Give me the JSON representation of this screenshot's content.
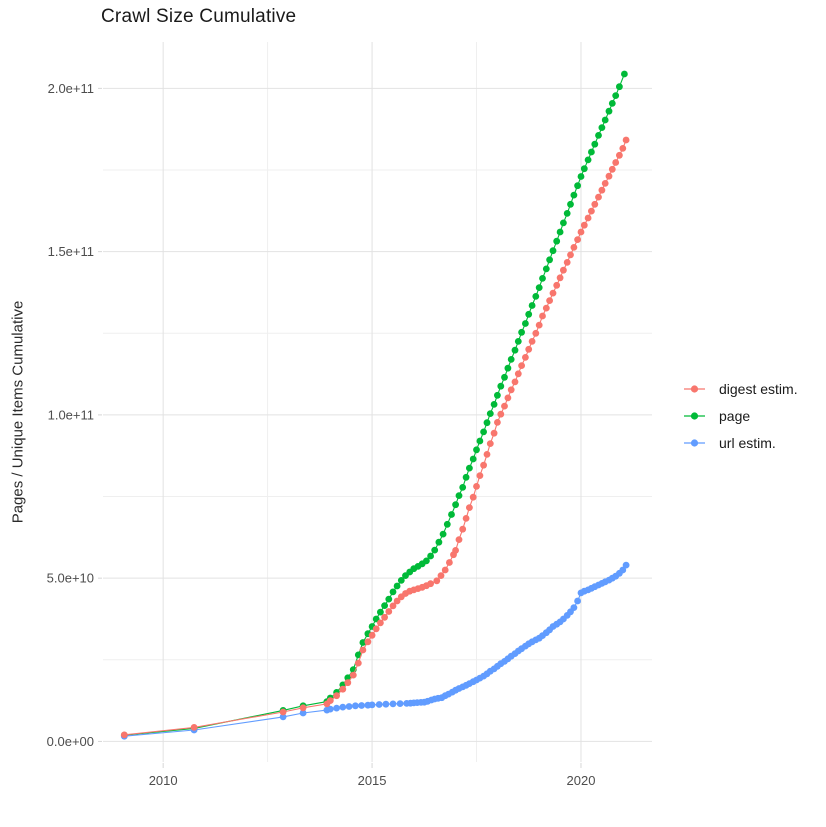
{
  "title": "Crawl Size Cumulative",
  "axes": {
    "y_label": "Pages / Unique Items Cumulative",
    "x_ticks": [
      {
        "value": 2010,
        "label": "2010"
      },
      {
        "value": 2015,
        "label": "2015"
      },
      {
        "value": 2020,
        "label": "2020"
      }
    ],
    "y_ticks": [
      {
        "value": 0,
        "label": "0.0e+00"
      },
      {
        "value": 50,
        "label": "5.0e+10"
      },
      {
        "value": 100,
        "label": "1.0e+11"
      },
      {
        "value": 150,
        "label": "1.5e+11"
      },
      {
        "value": 200,
        "label": "2.0e+11"
      }
    ],
    "x_minor": [
      2012.5,
      2017.5
    ],
    "y_minor": [
      25,
      75,
      125,
      175
    ],
    "x_domain": [
      2008.56,
      2021.7
    ],
    "y_domain": [
      -6.3,
      214.2
    ]
  },
  "legend": {
    "position": "right",
    "items": [
      {
        "id": "digest",
        "label": "digest estim.",
        "color": "#F8766D"
      },
      {
        "id": "page",
        "label": "page",
        "color": "#00BA38"
      },
      {
        "id": "url",
        "label": "url estim.",
        "color": "#619CFF"
      }
    ]
  },
  "chart_data": {
    "type": "line",
    "title": "Crawl Size Cumulative",
    "xlabel": "",
    "ylabel": "Pages / Unique Items Cumulative",
    "x_unit": "year",
    "value_unit": "pages, in billions (1e9)",
    "grid": true,
    "marker": "point",
    "series": [
      {
        "name": "page",
        "color": "#00BA38",
        "points": [
          [
            2009.07,
            1.9
          ],
          [
            2010.74,
            4.0
          ],
          [
            2012.87,
            9.5
          ],
          [
            2013.35,
            10.9
          ],
          [
            2013.92,
            12.2
          ],
          [
            2014.0,
            13.3
          ],
          [
            2014.15,
            15.0
          ],
          [
            2014.3,
            17.3
          ],
          [
            2014.42,
            19.5
          ],
          [
            2014.55,
            22.0
          ],
          [
            2014.67,
            26.5
          ],
          [
            2014.78,
            30.3
          ],
          [
            2014.9,
            33.0
          ],
          [
            2015.0,
            35.2
          ],
          [
            2015.1,
            37.5
          ],
          [
            2015.2,
            39.6
          ],
          [
            2015.3,
            41.6
          ],
          [
            2015.4,
            43.6
          ],
          [
            2015.5,
            45.8
          ],
          [
            2015.6,
            47.6
          ],
          [
            2015.7,
            49.3
          ],
          [
            2015.8,
            50.8
          ],
          [
            2015.9,
            51.9
          ],
          [
            2016.0,
            52.9
          ],
          [
            2016.1,
            53.6
          ],
          [
            2016.2,
            54.4
          ],
          [
            2016.3,
            55.3
          ],
          [
            2016.4,
            56.8
          ],
          [
            2016.5,
            58.6
          ],
          [
            2016.6,
            61.0
          ],
          [
            2016.7,
            63.5
          ],
          [
            2016.8,
            66.5
          ],
          [
            2016.9,
            69.5
          ],
          [
            2017.0,
            72.5
          ],
          [
            2017.08,
            75.3
          ],
          [
            2017.17,
            77.8
          ],
          [
            2017.25,
            80.9
          ],
          [
            2017.33,
            83.7
          ],
          [
            2017.42,
            86.5
          ],
          [
            2017.5,
            89.3
          ],
          [
            2017.58,
            92.0
          ],
          [
            2017.67,
            94.8
          ],
          [
            2017.75,
            97.6
          ],
          [
            2017.83,
            100.4
          ],
          [
            2017.92,
            103.2
          ],
          [
            2018.0,
            106.0
          ],
          [
            2018.08,
            108.8
          ],
          [
            2018.17,
            111.5
          ],
          [
            2018.25,
            114.3
          ],
          [
            2018.33,
            117.0
          ],
          [
            2018.42,
            119.8
          ],
          [
            2018.5,
            122.5
          ],
          [
            2018.58,
            125.3
          ],
          [
            2018.67,
            128.0
          ],
          [
            2018.75,
            130.8
          ],
          [
            2018.83,
            133.5
          ],
          [
            2018.92,
            136.3
          ],
          [
            2019.0,
            139.0
          ],
          [
            2019.08,
            141.8
          ],
          [
            2019.17,
            144.7
          ],
          [
            2019.25,
            147.5
          ],
          [
            2019.33,
            150.3
          ],
          [
            2019.42,
            153.2
          ],
          [
            2019.5,
            156.0
          ],
          [
            2019.58,
            158.8
          ],
          [
            2019.67,
            161.7
          ],
          [
            2019.75,
            164.5
          ],
          [
            2019.83,
            167.3
          ],
          [
            2019.92,
            170.2
          ],
          [
            2020.0,
            173.0
          ],
          [
            2020.08,
            175.4
          ],
          [
            2020.17,
            178.1
          ],
          [
            2020.25,
            180.5
          ],
          [
            2020.33,
            182.9
          ],
          [
            2020.42,
            185.6
          ],
          [
            2020.5,
            188.0
          ],
          [
            2020.58,
            190.3
          ],
          [
            2020.67,
            193.0
          ],
          [
            2020.75,
            195.4
          ],
          [
            2020.83,
            197.8
          ],
          [
            2020.92,
            200.5
          ],
          [
            2021.04,
            204.4
          ]
        ]
      },
      {
        "name": "url",
        "color": "#619CFF",
        "points": [
          [
            2009.07,
            1.6
          ],
          [
            2010.74,
            3.5
          ],
          [
            2012.87,
            7.5
          ],
          [
            2013.35,
            8.7
          ],
          [
            2013.92,
            9.6
          ],
          [
            2014.0,
            9.9
          ],
          [
            2014.15,
            10.2
          ],
          [
            2014.3,
            10.5
          ],
          [
            2014.45,
            10.7
          ],
          [
            2014.6,
            10.9
          ],
          [
            2014.75,
            11.0
          ],
          [
            2014.9,
            11.1
          ],
          [
            2015.0,
            11.2
          ],
          [
            2015.17,
            11.3
          ],
          [
            2015.33,
            11.4
          ],
          [
            2015.5,
            11.5
          ],
          [
            2015.67,
            11.6
          ],
          [
            2015.83,
            11.65
          ],
          [
            2015.92,
            11.7
          ],
          [
            2016.0,
            11.8
          ],
          [
            2016.08,
            11.9
          ],
          [
            2016.17,
            11.95
          ],
          [
            2016.25,
            12.0
          ],
          [
            2016.33,
            12.3
          ],
          [
            2016.42,
            12.7
          ],
          [
            2016.5,
            13.0
          ],
          [
            2016.58,
            13.2
          ],
          [
            2016.67,
            13.4
          ],
          [
            2016.75,
            14.0
          ],
          [
            2016.83,
            14.5
          ],
          [
            2016.92,
            15.1
          ],
          [
            2017.0,
            15.7
          ],
          [
            2017.08,
            16.2
          ],
          [
            2017.17,
            16.7
          ],
          [
            2017.25,
            17.2
          ],
          [
            2017.33,
            17.7
          ],
          [
            2017.42,
            18.3
          ],
          [
            2017.5,
            18.8
          ],
          [
            2017.58,
            19.4
          ],
          [
            2017.67,
            20.0
          ],
          [
            2017.75,
            20.7
          ],
          [
            2017.83,
            21.5
          ],
          [
            2017.92,
            22.2
          ],
          [
            2018.0,
            23.0
          ],
          [
            2018.08,
            23.8
          ],
          [
            2018.17,
            24.5
          ],
          [
            2018.25,
            25.3
          ],
          [
            2018.33,
            26.1
          ],
          [
            2018.42,
            26.9
          ],
          [
            2018.5,
            27.7
          ],
          [
            2018.58,
            28.4
          ],
          [
            2018.67,
            29.2
          ],
          [
            2018.75,
            29.9
          ],
          [
            2018.83,
            30.5
          ],
          [
            2018.92,
            31.1
          ],
          [
            2019.0,
            31.6
          ],
          [
            2019.08,
            32.4
          ],
          [
            2019.17,
            33.3
          ],
          [
            2019.25,
            34.2
          ],
          [
            2019.33,
            35.2
          ],
          [
            2019.42,
            35.9
          ],
          [
            2019.5,
            36.6
          ],
          [
            2019.58,
            37.5
          ],
          [
            2019.67,
            38.6
          ],
          [
            2019.75,
            39.7
          ],
          [
            2019.83,
            41.0
          ],
          [
            2019.92,
            43.0
          ],
          [
            2020.0,
            45.5
          ],
          [
            2020.08,
            46.0
          ],
          [
            2020.17,
            46.4
          ],
          [
            2020.25,
            46.9
          ],
          [
            2020.33,
            47.4
          ],
          [
            2020.42,
            47.9
          ],
          [
            2020.5,
            48.4
          ],
          [
            2020.58,
            48.9
          ],
          [
            2020.67,
            49.4
          ],
          [
            2020.75,
            50.0
          ],
          [
            2020.83,
            50.6
          ],
          [
            2020.92,
            51.5
          ],
          [
            2021.0,
            52.5
          ],
          [
            2021.08,
            54.0
          ]
        ]
      },
      {
        "name": "digest",
        "color": "#F8766D",
        "points": [
          [
            2009.07,
            2.0
          ],
          [
            2010.74,
            4.3
          ],
          [
            2012.87,
            9.0
          ],
          [
            2013.35,
            10.3
          ],
          [
            2013.92,
            11.5
          ],
          [
            2014.0,
            12.5
          ],
          [
            2014.15,
            14.0
          ],
          [
            2014.3,
            16.0
          ],
          [
            2014.42,
            18.0
          ],
          [
            2014.55,
            20.3
          ],
          [
            2014.67,
            24.0
          ],
          [
            2014.78,
            28.0
          ],
          [
            2014.9,
            30.5
          ],
          [
            2015.0,
            32.5
          ],
          [
            2015.1,
            34.5
          ],
          [
            2015.2,
            36.3
          ],
          [
            2015.3,
            38.0
          ],
          [
            2015.4,
            39.8
          ],
          [
            2015.5,
            41.5
          ],
          [
            2015.6,
            43.0
          ],
          [
            2015.7,
            44.3
          ],
          [
            2015.8,
            45.3
          ],
          [
            2015.9,
            46.0
          ],
          [
            2016.0,
            46.4
          ],
          [
            2016.1,
            46.8
          ],
          [
            2016.2,
            47.2
          ],
          [
            2016.3,
            47.7
          ],
          [
            2016.4,
            48.3
          ],
          [
            2016.55,
            49.2
          ],
          [
            2016.65,
            50.8
          ],
          [
            2016.75,
            52.5
          ],
          [
            2016.85,
            54.8
          ],
          [
            2016.95,
            57.2
          ],
          [
            2017.0,
            58.5
          ],
          [
            2017.08,
            61.8
          ],
          [
            2017.17,
            65.0
          ],
          [
            2017.25,
            68.3
          ],
          [
            2017.33,
            71.6
          ],
          [
            2017.42,
            74.8
          ],
          [
            2017.5,
            78.1
          ],
          [
            2017.58,
            81.4
          ],
          [
            2017.67,
            84.6
          ],
          [
            2017.75,
            87.9
          ],
          [
            2017.83,
            91.2
          ],
          [
            2017.92,
            94.4
          ],
          [
            2018.0,
            97.7
          ],
          [
            2018.08,
            100.2
          ],
          [
            2018.17,
            102.7
          ],
          [
            2018.25,
            105.2
          ],
          [
            2018.33,
            107.7
          ],
          [
            2018.42,
            110.1
          ],
          [
            2018.5,
            112.6
          ],
          [
            2018.58,
            115.1
          ],
          [
            2018.67,
            117.6
          ],
          [
            2018.75,
            120.1
          ],
          [
            2018.83,
            122.5
          ],
          [
            2018.92,
            125.0
          ],
          [
            2019.0,
            127.5
          ],
          [
            2019.08,
            130.3
          ],
          [
            2019.17,
            132.7
          ],
          [
            2019.25,
            135.0
          ],
          [
            2019.33,
            137.3
          ],
          [
            2019.42,
            139.7
          ],
          [
            2019.5,
            142.0
          ],
          [
            2019.58,
            144.3
          ],
          [
            2019.67,
            146.7
          ],
          [
            2019.75,
            149.0
          ],
          [
            2019.83,
            151.3
          ],
          [
            2019.92,
            153.7
          ],
          [
            2020.0,
            156.0
          ],
          [
            2020.08,
            158.1
          ],
          [
            2020.17,
            160.3
          ],
          [
            2020.25,
            162.4
          ],
          [
            2020.33,
            164.5
          ],
          [
            2020.42,
            166.7
          ],
          [
            2020.5,
            168.8
          ],
          [
            2020.58,
            170.9
          ],
          [
            2020.67,
            173.1
          ],
          [
            2020.75,
            175.2
          ],
          [
            2020.83,
            177.3
          ],
          [
            2020.92,
            179.5
          ],
          [
            2021.0,
            181.6
          ],
          [
            2021.08,
            184.2
          ]
        ]
      }
    ]
  }
}
